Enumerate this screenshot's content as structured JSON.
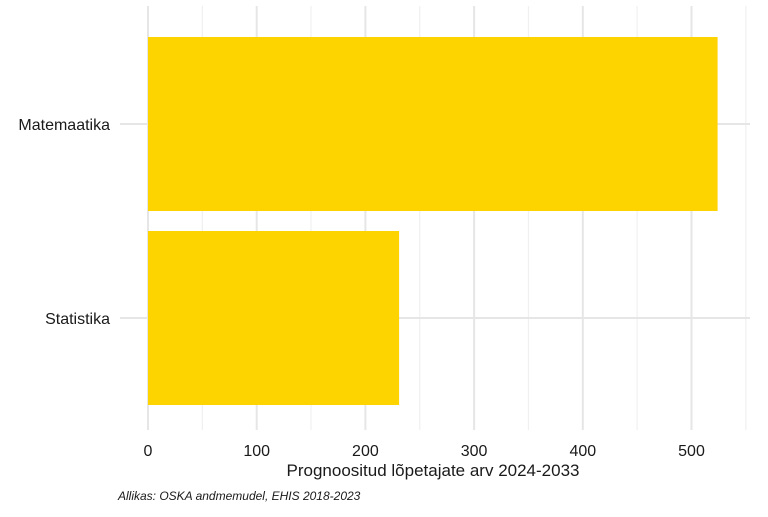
{
  "chart_data": {
    "type": "bar",
    "orientation": "horizontal",
    "title": "",
    "xlabel": "Prognoositud lõpetajate arv 2024-2033",
    "ylabel": "",
    "categories": [
      "Matemaatika",
      "Statistika"
    ],
    "values": [
      524,
      231
    ],
    "xlim": [
      0,
      550
    ],
    "x_ticks": [
      0,
      100,
      200,
      300,
      400,
      500
    ],
    "grid": true,
    "bar_color": "#FDD300",
    "caption": "Allikas: OSKA andmemudel, EHIS 2018-2023"
  }
}
